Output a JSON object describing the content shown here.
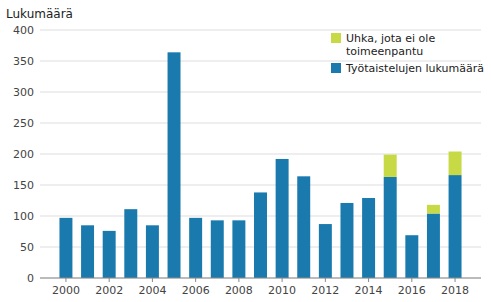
{
  "chart_data": {
    "type": "bar",
    "stacked": true,
    "grid": true,
    "legend": "upper right",
    "ylabel": "Lukumäärä",
    "x": [
      2000,
      2001,
      2002,
      2003,
      2004,
      2005,
      2006,
      2007,
      2008,
      2009,
      2010,
      2011,
      2012,
      2013,
      2014,
      2015,
      2016,
      2017,
      2018
    ],
    "xlim": [
      1998.8,
      2019.2
    ],
    "xticks": [
      2000,
      2002,
      2004,
      2006,
      2008,
      2010,
      2012,
      2014,
      2016,
      2018
    ],
    "ylim": [
      0,
      400
    ],
    "yticks": [
      0,
      50,
      100,
      150,
      200,
      250,
      300,
      350,
      400
    ],
    "series": [
      {
        "name": "Työtaistelujen lukumäärä",
        "color": "#1a7aad",
        "values": [
          97,
          85,
          76,
          111,
          85,
          364,
          97,
          93,
          93,
          138,
          192,
          164,
          87,
          121,
          129,
          163,
          69,
          104,
          166
        ]
      },
      {
        "name": "Uhka, jota ei ole\ntoimeenpantu",
        "color": "#c8d946",
        "values": [
          0,
          0,
          0,
          0,
          0,
          0,
          0,
          0,
          0,
          0,
          0,
          0,
          0,
          0,
          0,
          36,
          0,
          14,
          38
        ]
      }
    ]
  }
}
